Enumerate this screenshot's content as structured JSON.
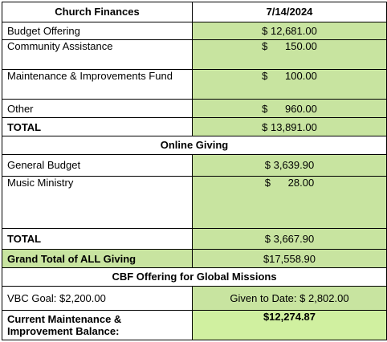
{
  "header": {
    "title": "Church Finances",
    "date": "7/14/2024"
  },
  "offerings": [
    {
      "label": "Budget Offering",
      "amount": "$ 12,681.00"
    },
    {
      "label": "Community Assistance",
      "amount": "$      150.00"
    },
    {
      "label": "Maintenance & Improvements Fund",
      "amount": "$      100.00"
    },
    {
      "label": "Other",
      "amount": "$      960.00"
    }
  ],
  "offerings_total": {
    "label": "TOTAL",
    "amount": "$ 13,891.00"
  },
  "online": {
    "heading": "Online Giving",
    "items": [
      {
        "label": "General Budget",
        "amount": "$ 3,639.90"
      },
      {
        "label": "Music Ministry",
        "amount": "$      28.00"
      }
    ],
    "total": {
      "label": "TOTAL",
      "amount": "$ 3,667.90"
    }
  },
  "grand_total": {
    "label": "Grand Total of ALL Giving",
    "amount": "$17,558.90"
  },
  "cbf": {
    "heading": "CBF Offering for Global Missions",
    "goal": "VBC Goal: $2,200.00",
    "given": "Given to Date: $ 2,802.00"
  },
  "balance": {
    "label": "Current Maintenance & Improvement Balance:",
    "amount": "$12,274.87"
  }
}
